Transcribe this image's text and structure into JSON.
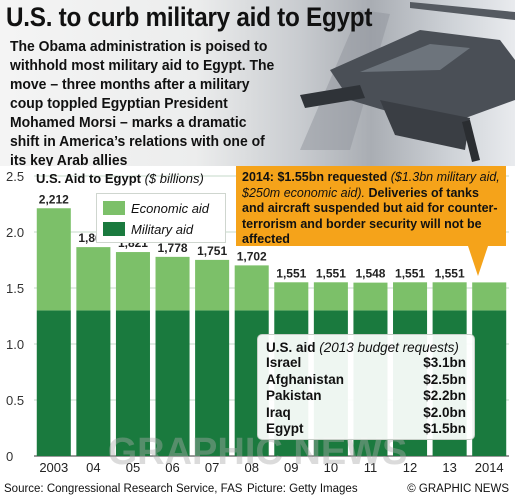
{
  "headline": "U.S. to curb military aid to Egypt",
  "intro": "The Obama administration is poised to withhold most military aid to Egypt. The move – three months after a military coup toppled Egyptian President Mohamed Morsi – marks a dramatic shift in America’s relations with one of its key Arab allies",
  "chart_data": {
    "type": "bar",
    "title": "U.S. Aid to Egypt",
    "title_unit": "($ billions)",
    "categories": [
      "2003",
      "04",
      "05",
      "06",
      "07",
      "08",
      "09",
      "10",
      "11",
      "12",
      "13",
      "2014"
    ],
    "series": [
      {
        "name": "Military aid",
        "values": [
          1.3,
          1.3,
          1.3,
          1.3,
          1.3,
          1.3,
          1.3,
          1.3,
          1.3,
          1.3,
          1.3,
          1.3
        ]
      },
      {
        "name": "Economic aid",
        "values": [
          0.912,
          0.565,
          0.521,
          0.478,
          0.451,
          0.402,
          0.251,
          0.251,
          0.248,
          0.251,
          0.251,
          0.25
        ]
      }
    ],
    "total_labels": [
      "2,212",
      "1,865",
      "1,821",
      "1,778",
      "1,751",
      "1,702",
      "1,551",
      "1,551",
      "1,548",
      "1,551",
      "1,551",
      ""
    ],
    "totals": [
      2.212,
      1.865,
      1.821,
      1.778,
      1.751,
      1.702,
      1.551,
      1.551,
      1.548,
      1.551,
      1.551,
      1.55
    ],
    "y_ticks": [
      "0",
      "0.5",
      "1.0",
      "1.5",
      "2.0",
      "2.5"
    ],
    "ylim": [
      0,
      2.5
    ],
    "grid": true,
    "legend_position": "top-left",
    "colors": {
      "military": "#1a7a3e",
      "economic": "#7cc069",
      "background": "#ffffff",
      "grid": "#c6d9c8"
    }
  },
  "legend": {
    "economic_label": "Economic aid",
    "military_label": "Military aid"
  },
  "callout": {
    "line_bold": "2014: $1.55bn requested",
    "line_italic": "($1.3bn military aid, $250m economic aid).",
    "line_rest": "Deliveries of tanks and aircraft suspended but aid for counter-terrorism and border security will not be affected",
    "color": "#f5a31a"
  },
  "budget": {
    "title": "U.S. aid",
    "subtitle": "(2013 budget requests)",
    "rows": [
      {
        "country": "Israel",
        "amount": "$3.1bn"
      },
      {
        "country": "Afghanistan",
        "amount": "$2.5bn"
      },
      {
        "country": "Pakistan",
        "amount": "$2.2bn"
      },
      {
        "country": "Iraq",
        "amount": "$2.0bn"
      },
      {
        "country": "Egypt",
        "amount": "$1.5bn"
      }
    ]
  },
  "watermark": "GRAPHIC NEWS",
  "footer": {
    "source": "Source: Congressional Research Service, FAS",
    "picture": "Picture: Getty Images",
    "credit": "© GRAPHIC NEWS"
  }
}
